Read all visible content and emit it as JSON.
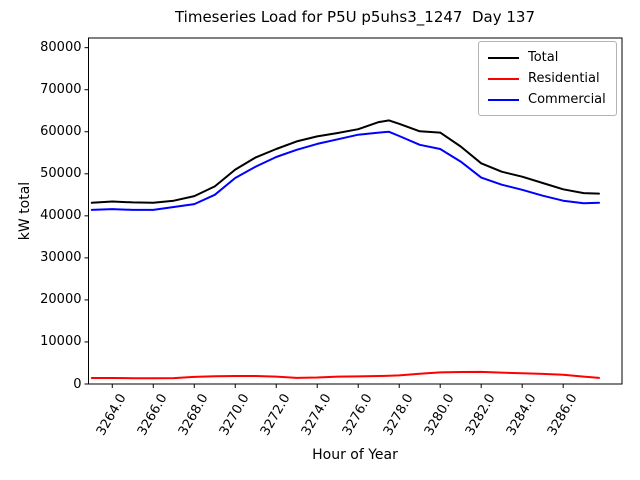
{
  "chart_data": {
    "type": "line",
    "title": "Timeseries Load for P5U p5uhs3_1247  Day 137",
    "xlabel": "Hour of Year",
    "ylabel": "kW total",
    "background": "#ffffff",
    "axis_color": "#000000",
    "grid": false,
    "legend_position": "upper right",
    "xlim": [
      3262.84,
      3288.87
    ],
    "ylim": [
      0,
      82300
    ],
    "xticks": [
      3264,
      3266,
      3268,
      3270,
      3272,
      3274,
      3276,
      3278,
      3280,
      3282,
      3284,
      3286
    ],
    "xtick_labels": [
      "3264.0",
      "3266.0",
      "3268.0",
      "3270.0",
      "3272.0",
      "3274.0",
      "3276.0",
      "3278.0",
      "3280.0",
      "3282.0",
      "3284.0",
      "3286.0"
    ],
    "xtick_rotation": 60,
    "yticks": [
      0,
      10000,
      20000,
      30000,
      40000,
      50000,
      60000,
      70000,
      80000
    ],
    "ytick_labels": [
      "0",
      "10000",
      "20000",
      "30000",
      "40000",
      "50000",
      "60000",
      "70000",
      "80000"
    ],
    "x": [
      3263,
      3264,
      3265,
      3266,
      3267,
      3268,
      3269,
      3270,
      3271,
      3272,
      3273,
      3274,
      3275,
      3276,
      3277,
      3277.5,
      3278,
      3279,
      3280,
      3281,
      3282,
      3283,
      3284,
      3285,
      3286,
      3287,
      3287.75
    ],
    "series": [
      {
        "name": "Total",
        "color": "#000000",
        "values": [
          43100,
          43400,
          43200,
          43100,
          43600,
          44700,
          47000,
          51000,
          53900,
          55900,
          57700,
          58900,
          59700,
          60600,
          62300,
          62700,
          61900,
          60100,
          59800,
          56500,
          52500,
          50500,
          49300,
          47800,
          46300,
          45400,
          45300
        ]
      },
      {
        "name": "Residential",
        "color": "#ff0000",
        "values": [
          1430,
          1430,
          1370,
          1360,
          1400,
          1700,
          1820,
          1900,
          1900,
          1750,
          1450,
          1550,
          1750,
          1800,
          1900,
          1950,
          2050,
          2450,
          2750,
          2850,
          2870,
          2700,
          2550,
          2400,
          2200,
          1750,
          1450
        ]
      },
      {
        "name": "Commercial",
        "color": "#0000ff",
        "values": [
          41400,
          41600,
          41400,
          41400,
          42100,
          42800,
          45000,
          49000,
          51700,
          54000,
          55700,
          57100,
          58200,
          59300,
          59800,
          60000,
          59000,
          56900,
          55900,
          52900,
          49100,
          47400,
          46200,
          44800,
          43600,
          43000,
          43100
        ]
      }
    ]
  }
}
